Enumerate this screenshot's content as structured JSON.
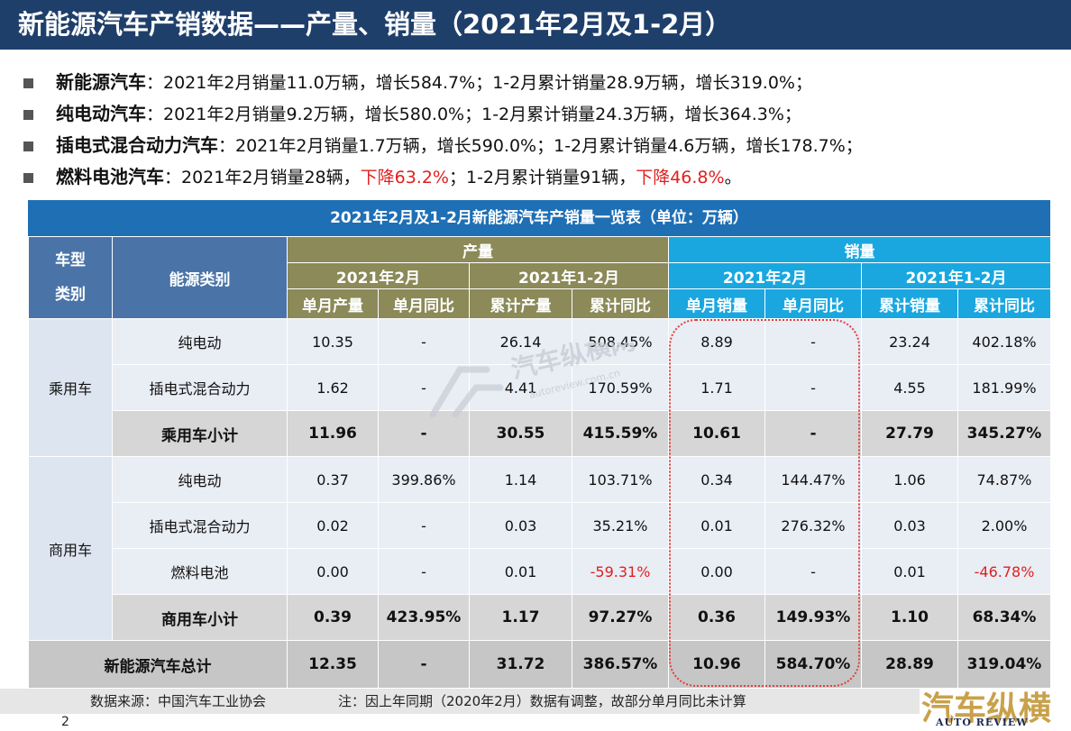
{
  "title": "新能源汽车产销数据——产量、销量（2021年2月及1-2月）",
  "bullets": [
    {
      "label": "新能源汽车",
      "parts": [
        "：2021年2月销量11.0万辆，增长584.7%；1-2月累计销量28.9万辆，增长319.0%；"
      ]
    },
    {
      "label": "纯电动汽车",
      "parts": [
        "：2021年2月销量9.2万辆，增长580.0%；1-2月累计销量24.3万辆，增长364.3%；"
      ]
    },
    {
      "label": "插电式混合动力汽车",
      "parts": [
        "：2021年2月销量1.7万辆，增长590.0%；1-2月累计销量4.6万辆，增长178.7%；"
      ]
    },
    {
      "label": "燃料电池汽车",
      "p1": "：2021年2月销量28辆，",
      "r1": "下降63.2%",
      "p2": "；1-2月累计销量91辆，",
      "r2": "下降46.8%",
      "p3": "。"
    }
  ],
  "table": {
    "caption": "2021年2月及1-2月新能源汽车产销量一览表（单位：万辆）",
    "h_model": "车型",
    "h_class": "类别",
    "h_energy": "能源类别",
    "h_prod": "产量",
    "h_sale": "销量",
    "h_feb": "2021年2月",
    "h_janfeb": "2021年1-2月",
    "cols": [
      "单月产量",
      "单月同比",
      "累计产量",
      "累计同比",
      "单月销量",
      "单月同比",
      "累计销量",
      "累计同比"
    ],
    "cat_passenger": "乘用车",
    "cat_commercial": "商用车",
    "rows": [
      {
        "name": "纯电动",
        "v": [
          "10.35",
          "-",
          "26.14",
          "508.45%",
          "8.89",
          "-",
          "23.24",
          "402.18%"
        ]
      },
      {
        "name": "插电式混合动力",
        "v": [
          "1.62",
          "-",
          "4.41",
          "170.59%",
          "1.71",
          "-",
          "4.55",
          "181.99%"
        ]
      },
      {
        "name": "乘用车小计",
        "v": [
          "11.96",
          "-",
          "30.55",
          "415.59%",
          "10.61",
          "-",
          "27.79",
          "345.27%"
        ]
      },
      {
        "name": "纯电动",
        "v": [
          "0.37",
          "399.86%",
          "1.14",
          "103.71%",
          "0.34",
          "144.47%",
          "1.06",
          "74.87%"
        ]
      },
      {
        "name": "插电式混合动力",
        "v": [
          "0.02",
          "-",
          "0.03",
          "35.21%",
          "0.01",
          "276.32%",
          "0.03",
          "2.00%"
        ]
      },
      {
        "name": "燃料电池",
        "v": [
          "0.00",
          "-",
          "0.01",
          "-59.31%",
          "0.00",
          "-",
          "0.01",
          "-46.78%"
        ]
      },
      {
        "name": "商用车小计",
        "v": [
          "0.39",
          "423.95%",
          "1.17",
          "97.27%",
          "0.36",
          "149.93%",
          "1.10",
          "68.34%"
        ]
      }
    ],
    "total": {
      "name": "新能源汽车总计",
      "v": [
        "12.35",
        "-",
        "31.72",
        "386.57%",
        "10.96",
        "584.70%",
        "28.89",
        "319.04%"
      ]
    }
  },
  "footer": {
    "source": "数据来源：中国汽车工业协会",
    "note": "注：因上年同期（2020年2月）数据有调整，故部分单月同比未计算"
  },
  "page_number": "2",
  "logo": {
    "cn": "汽车纵横",
    "en": "AUTO REVIEW"
  },
  "watermark": {
    "cn": "汽车纵横网",
    "en": "autoreview.com.cn"
  },
  "colors": {
    "title_bg": "#1f3f6b",
    "caption_bg": "#1f6fb5",
    "prod_header": "#8b8a58",
    "sale_header": "#1aa7e0",
    "negative": "#e02020"
  }
}
